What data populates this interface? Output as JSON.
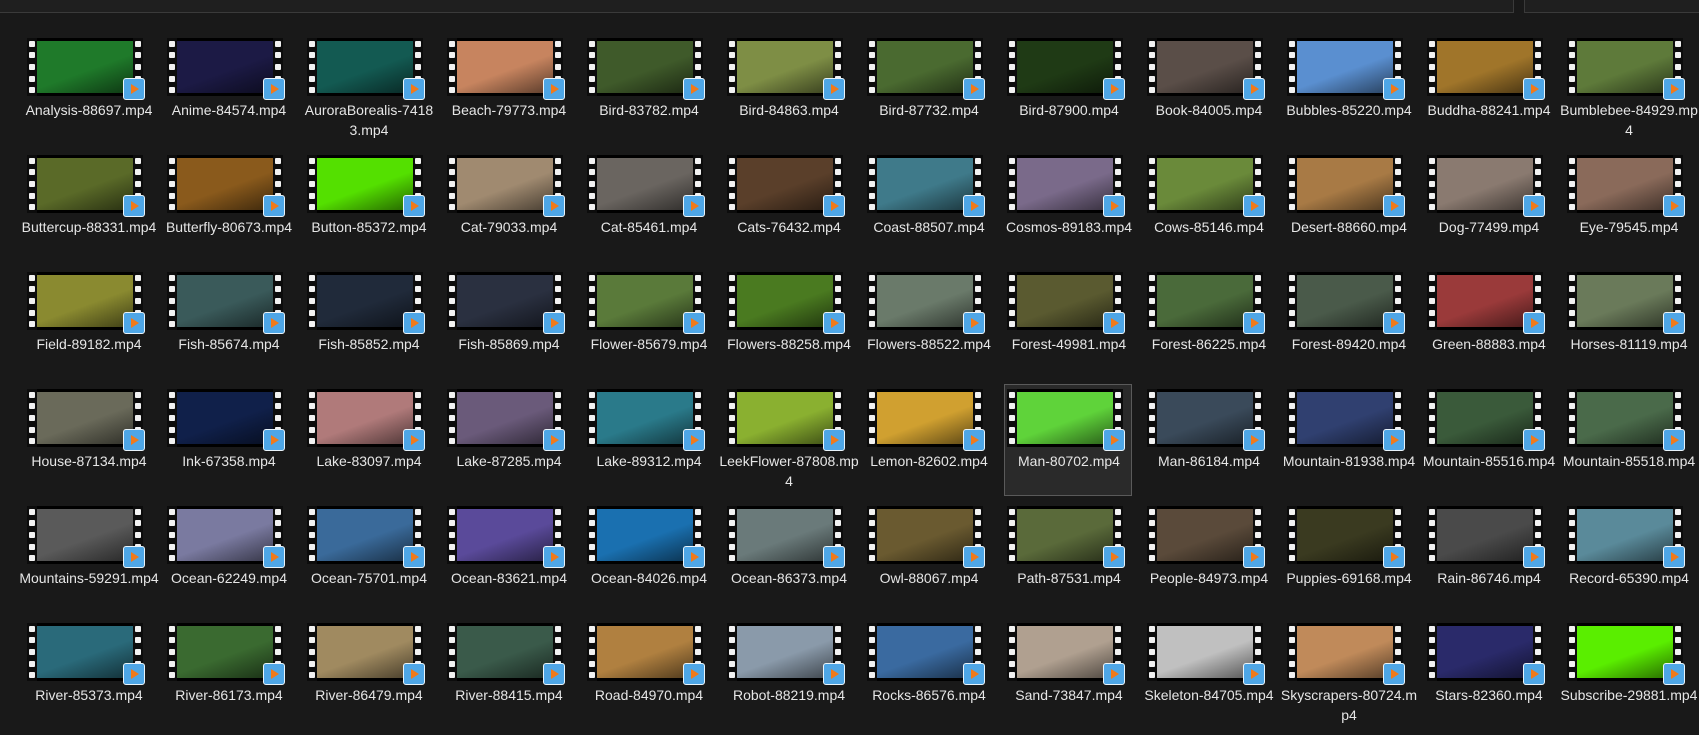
{
  "files": [
    {
      "name": "Analysis-88697.mp4",
      "c": "#1f7a2a"
    },
    {
      "name": "Anime-84574.mp4",
      "c": "#1c1a45"
    },
    {
      "name": "AuroraBorealis-74183.mp4",
      "c": "#135a52"
    },
    {
      "name": "Beach-79773.mp4",
      "c": "#c7845f"
    },
    {
      "name": "Bird-83782.mp4",
      "c": "#3f5a2a"
    },
    {
      "name": "Bird-84863.mp4",
      "c": "#7e8e45"
    },
    {
      "name": "Bird-87732.mp4",
      "c": "#4a6a30"
    },
    {
      "name": "Bird-87900.mp4",
      "c": "#1f3a15"
    },
    {
      "name": "Book-84005.mp4",
      "c": "#5a4e48"
    },
    {
      "name": "Bubbles-85220.mp4",
      "c": "#5a8fd0"
    },
    {
      "name": "Buddha-88241.mp4",
      "c": "#a0752a"
    },
    {
      "name": "Bumblebee-84929.mp4",
      "c": "#5e7a3a"
    },
    {
      "name": "Buttercup-88331.mp4",
      "c": "#5a6a28"
    },
    {
      "name": "Butterfly-80673.mp4",
      "c": "#8a5a1c"
    },
    {
      "name": "Button-85372.mp4",
      "c": "#54e000"
    },
    {
      "name": "Cat-79033.mp4",
      "c": "#a08a70"
    },
    {
      "name": "Cat-85461.mp4",
      "c": "#6a6560"
    },
    {
      "name": "Cats-76432.mp4",
      "c": "#5a3f2a"
    },
    {
      "name": "Coast-88507.mp4",
      "c": "#3f7a8a"
    },
    {
      "name": "Cosmos-89183.mp4",
      "c": "#7a6a8a"
    },
    {
      "name": "Cows-85146.mp4",
      "c": "#6a8a3a"
    },
    {
      "name": "Desert-88660.mp4",
      "c": "#a87a45"
    },
    {
      "name": "Dog-77499.mp4",
      "c": "#8a7a70"
    },
    {
      "name": "Eye-79545.mp4",
      "c": "#8a6a5a"
    },
    {
      "name": "Field-89182.mp4",
      "c": "#8a8a30"
    },
    {
      "name": "Fish-85674.mp4",
      "c": "#3a5a5a"
    },
    {
      "name": "Fish-85852.mp4",
      "c": "#202a3a"
    },
    {
      "name": "Fish-85869.mp4",
      "c": "#2a3040"
    },
    {
      "name": "Flower-85679.mp4",
      "c": "#5a7a3a"
    },
    {
      "name": "Flowers-88258.mp4",
      "c": "#4a7a20"
    },
    {
      "name": "Flowers-88522.mp4",
      "c": "#6a7a6a"
    },
    {
      "name": "Forest-49981.mp4",
      "c": "#5a5a30"
    },
    {
      "name": "Forest-86225.mp4",
      "c": "#4a6a3a"
    },
    {
      "name": "Forest-89420.mp4",
      "c": "#4a5a4a"
    },
    {
      "name": "Green-88883.mp4",
      "c": "#9a3a3a"
    },
    {
      "name": "Horses-81119.mp4",
      "c": "#6a7a5a"
    },
    {
      "name": "House-87134.mp4",
      "c": "#6a6a5a"
    },
    {
      "name": "Ink-67358.mp4",
      "c": "#10204a"
    },
    {
      "name": "Lake-83097.mp4",
      "c": "#b07a7a"
    },
    {
      "name": "Lake-87285.mp4",
      "c": "#6a5a7a"
    },
    {
      "name": "Lake-89312.mp4",
      "c": "#2a7a8a"
    },
    {
      "name": "LeekFlower-87808.mp4",
      "c": "#8ab030"
    },
    {
      "name": "Lemon-82602.mp4",
      "c": "#d0a030"
    },
    {
      "name": "Man-80702.mp4",
      "c": "#5fd33a"
    },
    {
      "name": "Man-86184.mp4",
      "c": "#3a4a5a"
    },
    {
      "name": "Mountain-81938.mp4",
      "c": "#304070"
    },
    {
      "name": "Mountain-85516.mp4",
      "c": "#3a5a3a"
    },
    {
      "name": "Mountain-85518.mp4",
      "c": "#4a6a4a"
    },
    {
      "name": "Mountains-59291.mp4",
      "c": "#5a5a5a"
    },
    {
      "name": "Ocean-62249.mp4",
      "c": "#7a7aa0"
    },
    {
      "name": "Ocean-75701.mp4",
      "c": "#3a6a9a"
    },
    {
      "name": "Ocean-83621.mp4",
      "c": "#5a4a9a"
    },
    {
      "name": "Ocean-84026.mp4",
      "c": "#1a70b0"
    },
    {
      "name": "Ocean-86373.mp4",
      "c": "#6a7a7a"
    },
    {
      "name": "Owl-88067.mp4",
      "c": "#6a5a30"
    },
    {
      "name": "Path-87531.mp4",
      "c": "#5a6a3a"
    },
    {
      "name": "People-84973.mp4",
      "c": "#5a4a3a"
    },
    {
      "name": "Puppies-69168.mp4",
      "c": "#3a3a20"
    },
    {
      "name": "Rain-86746.mp4",
      "c": "#4a4a4a"
    },
    {
      "name": "Record-65390.mp4",
      "c": "#5a8a9a"
    },
    {
      "name": "River-85373.mp4",
      "c": "#2a6a7a"
    },
    {
      "name": "River-86173.mp4",
      "c": "#3a6a30"
    },
    {
      "name": "River-86479.mp4",
      "c": "#a08a60"
    },
    {
      "name": "River-88415.mp4",
      "c": "#3a5a4a"
    },
    {
      "name": "Road-84970.mp4",
      "c": "#b08040"
    },
    {
      "name": "Robot-88219.mp4",
      "c": "#8a9aaa"
    },
    {
      "name": "Rocks-86576.mp4",
      "c": "#3a6aa0"
    },
    {
      "name": "Sand-73847.mp4",
      "c": "#b0a090"
    },
    {
      "name": "Skeleton-84705.mp4",
      "c": "#c0c0c0"
    },
    {
      "name": "Skyscrapers-80724.mp4",
      "c": "#c08a5a"
    },
    {
      "name": "Stars-82360.mp4",
      "c": "#2a2a6a"
    },
    {
      "name": "Subscribe-29881.mp4",
      "c": "#5aee00"
    }
  ],
  "selected_index": 43
}
